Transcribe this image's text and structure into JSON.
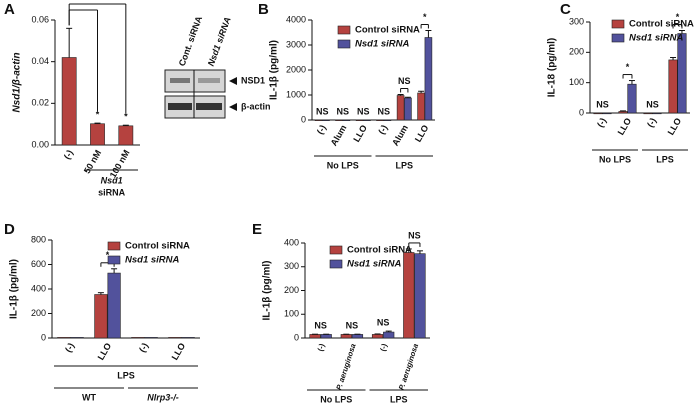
{
  "chart_data": [
    {
      "type": "bar",
      "panel": "A",
      "y_label": "Nsd1/β-actin",
      "categories": [
        "(-)",
        "50 nM",
        "100 nM"
      ],
      "values": [
        0.042,
        0.0102,
        0.0092
      ],
      "errors": [
        0.014,
        0.0003,
        0.0003
      ],
      "color": "#b5423f",
      "annotations": [
        null,
        "*",
        "*"
      ],
      "group_label_lines": [
        "Nsd1",
        "siRNA"
      ],
      "ylim": [
        0,
        0.06
      ],
      "yticks": [
        {
          "value": 0,
          "label": "0.00"
        },
        {
          "value": 0.02,
          "label": "0.02"
        },
        {
          "value": 0.04,
          "label": "0.04"
        },
        {
          "value": 0.06,
          "label": "0.06"
        }
      ],
      "blot": {
        "lanes": [
          "Cont. siRNA",
          "Nsd1 siRNA"
        ],
        "bands": [
          "NSD1",
          "β-actin"
        ]
      }
    },
    {
      "type": "bar",
      "panel": "B",
      "y_label": "IL-1β (pg/ml)",
      "categories": [
        "(-)",
        "Alum",
        "LLO",
        "(-)",
        "Alum",
        "LLO"
      ],
      "series": [
        {
          "name": "Control siRNA",
          "color": "#b5423f",
          "values": [
            5,
            5,
            5,
            5,
            980,
            1080
          ],
          "errors": [
            0,
            0,
            0,
            0,
            40,
            70
          ]
        },
        {
          "name": "Nsd1 siRNA",
          "color": "#52529c",
          "values": [
            5,
            5,
            5,
            5,
            880,
            3300
          ],
          "errors": [
            0,
            0,
            0,
            0,
            30,
            280
          ]
        }
      ],
      "annotations": [
        "NS",
        "NS",
        "NS",
        "NS",
        "NS",
        "*"
      ],
      "groups": [
        "No LPS",
        "LPS"
      ],
      "ylim": [
        0,
        4000
      ],
      "yticks": [
        0,
        1000,
        2000,
        3000,
        4000
      ]
    },
    {
      "type": "bar",
      "panel": "C",
      "y_label": "IL-18 (pg/ml)",
      "categories": [
        "(-)",
        "LLO",
        "(-)",
        "LLO"
      ],
      "series": [
        {
          "name": "Control siRNA",
          "color": "#b5423f",
          "values": [
            0,
            5,
            0,
            175
          ],
          "errors": [
            0,
            2,
            0,
            8
          ]
        },
        {
          "name": "Nsd1 siRNA",
          "color": "#52529c",
          "values": [
            0,
            95,
            0,
            262
          ],
          "errors": [
            0,
            12,
            0,
            10
          ]
        }
      ],
      "annotations": [
        "NS",
        "*",
        "NS",
        "*"
      ],
      "groups": [
        "No LPS",
        "LPS"
      ],
      "ylim": [
        0,
        300
      ],
      "yticks": [
        0,
        100,
        200,
        300
      ]
    },
    {
      "type": "bar",
      "panel": "D",
      "y_label": "IL-1β (pg/ml)",
      "categories": [
        "(-)",
        "LLO",
        "(-)",
        "LLO"
      ],
      "series": [
        {
          "name": "Control siRNA",
          "color": "#b5423f",
          "values": [
            5,
            355,
            5,
            5
          ],
          "errors": [
            0,
            15,
            0,
            0
          ]
        },
        {
          "name": "Nsd1 siRNA",
          "color": "#52529c",
          "values": [
            5,
            530,
            5,
            5
          ],
          "errors": [
            0,
            35,
            0,
            0
          ]
        }
      ],
      "annotations": [
        null,
        "*",
        null,
        null
      ],
      "groups": [
        "LPS"
      ],
      "subgroups": [
        "WT",
        "Nlrp3-/-"
      ],
      "ylim": [
        0,
        800
      ],
      "yticks": [
        0,
        200,
        400,
        600,
        800
      ]
    },
    {
      "type": "bar",
      "panel": "E",
      "y_label": "IL-1β (pg/ml)",
      "categories": [
        "(-)",
        "P. aeruginosa",
        "(-)",
        "P. aeruginosa"
      ],
      "series": [
        {
          "name": "Control siRNA",
          "color": "#b5423f",
          "values": [
            15,
            15,
            15,
            360
          ],
          "errors": [
            1,
            1,
            2,
            15
          ]
        },
        {
          "name": "Nsd1 siRNA",
          "color": "#52529c",
          "values": [
            15,
            15,
            25,
            355
          ],
          "errors": [
            1,
            1,
            4,
            12
          ]
        }
      ],
      "annotations": [
        "NS",
        "NS",
        "NS",
        "NS"
      ],
      "groups": [
        "No LPS",
        "LPS"
      ],
      "ylim": [
        0,
        400
      ],
      "yticks": [
        0,
        100,
        200,
        300,
        400
      ]
    }
  ]
}
